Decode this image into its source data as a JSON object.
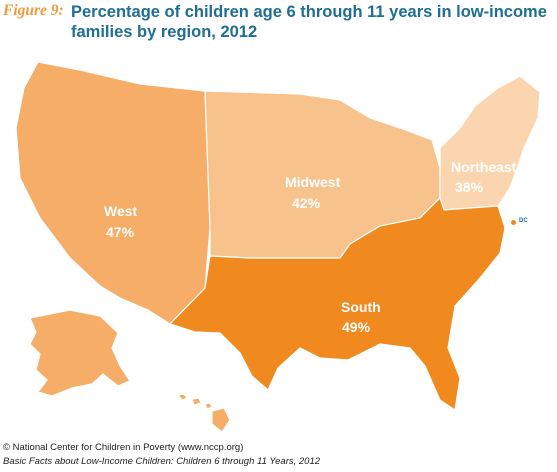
{
  "figure_label": "Figure 9:",
  "title": "Percentage of children age 6 through 11 years in low-income families by region, 2012",
  "regions": [
    {
      "name": "West",
      "value": "47%",
      "color": "#f5ad67"
    },
    {
      "name": "Midwest",
      "value": "42%",
      "color": "#f8c28c"
    },
    {
      "name": "Northeast",
      "value": "38%",
      "color": "#fbd5b0"
    },
    {
      "name": "South",
      "value": "49%",
      "color": "#f0891e"
    }
  ],
  "dc_label": "DC",
  "credit": "© National Center for Children in Poverty (www.nccp.org)",
  "source": "Basic Facts about Low-Income Children: Children 6 through 11 Years, 2012"
}
